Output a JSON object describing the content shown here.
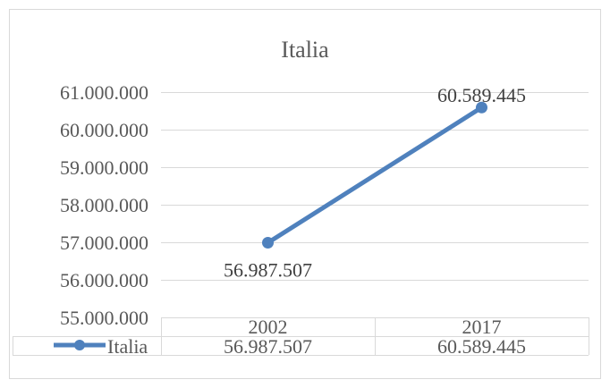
{
  "chart_data": {
    "type": "line",
    "title": "Italia",
    "categories": [
      "2002",
      "2017"
    ],
    "series": [
      {
        "name": "Italia",
        "values": [
          56987507,
          60589445
        ],
        "value_labels": [
          "56.987.507",
          "60.589.445"
        ],
        "color": "#4f81bd"
      }
    ],
    "ylim": [
      55000000,
      61000000
    ],
    "y_ticks": [
      {
        "value": 55000000,
        "label": "55.000.000"
      },
      {
        "value": 56000000,
        "label": "56.000.000"
      },
      {
        "value": 57000000,
        "label": "57.000.000"
      },
      {
        "value": 58000000,
        "label": "58.000.000"
      },
      {
        "value": 59000000,
        "label": "59.000.000"
      },
      {
        "value": 60000000,
        "label": "60.000.000"
      },
      {
        "value": 61000000,
        "label": "61.000.000"
      }
    ],
    "grid": true,
    "data_table": true,
    "xlabel": "",
    "ylabel": ""
  }
}
